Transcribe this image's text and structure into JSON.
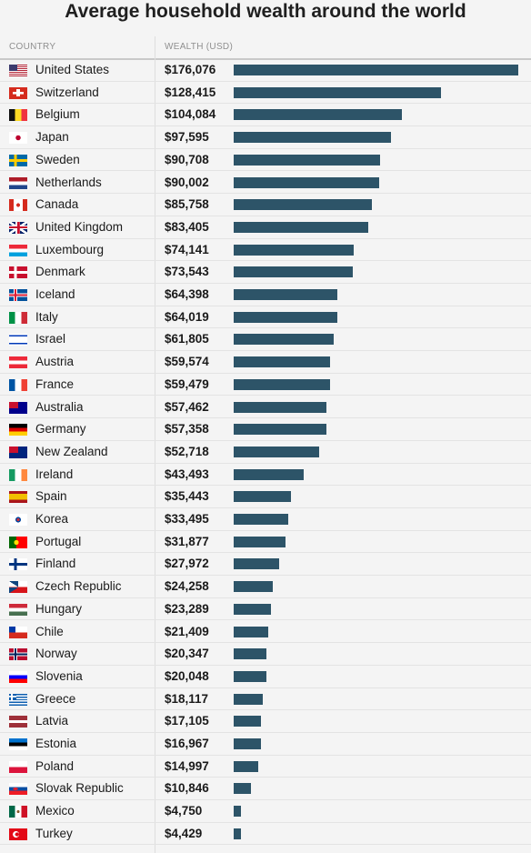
{
  "title": "Average household wealth around the world",
  "headers": {
    "country": "COUNTRY",
    "wealth": "WEALTH (USD)"
  },
  "colors": {
    "bar": "#2d5468",
    "background": "#f4f4f4"
  },
  "chart_data": {
    "type": "bar",
    "orientation": "horizontal",
    "title": "Average household wealth around the world",
    "categories": [
      "United States",
      "Switzerland",
      "Belgium",
      "Japan",
      "Sweden",
      "Netherlands",
      "Canada",
      "United Kingdom",
      "Luxembourg",
      "Denmark",
      "Iceland",
      "Italy",
      "Israel",
      "Austria",
      "France",
      "Australia",
      "Germany",
      "New Zealand",
      "Ireland",
      "Spain",
      "Korea",
      "Portugal",
      "Finland",
      "Czech Republic",
      "Hungary",
      "Chile",
      "Norway",
      "Slovenia",
      "Greece",
      "Latvia",
      "Estonia",
      "Poland",
      "Slovak Republic",
      "Mexico",
      "Turkey"
    ],
    "values": [
      176076,
      128415,
      104084,
      97595,
      90708,
      90002,
      85758,
      83405,
      74141,
      73543,
      64398,
      64019,
      61805,
      59574,
      59479,
      57462,
      57358,
      52718,
      43493,
      35443,
      33495,
      31877,
      27972,
      24258,
      23289,
      21409,
      20347,
      20048,
      18117,
      17105,
      16967,
      14997,
      10846,
      4750,
      4429
    ],
    "labels": [
      "$176,076",
      "$128,415",
      "$104,084",
      "$97,595",
      "$90,708",
      "$90,002",
      "$85,758",
      "$83,405",
      "$74,141",
      "$73,543",
      "$64,398",
      "$64,019",
      "$61,805",
      "$59,574",
      "$59,479",
      "$57,462",
      "$57,358",
      "$52,718",
      "$43,493",
      "$35,443",
      "$33,495",
      "$31,877",
      "$27,972",
      "$24,258",
      "$23,289",
      "$21,409",
      "$20,347",
      "$20,048",
      "$18,117",
      "$17,105",
      "$16,967",
      "$14,997",
      "$10,846",
      "$4,750",
      "$4,429"
    ],
    "flags": [
      "us-flag-icon",
      "switzerland-flag-icon",
      "belgium-flag-icon",
      "japan-flag-icon",
      "sweden-flag-icon",
      "netherlands-flag-icon",
      "canada-flag-icon",
      "uk-flag-icon",
      "luxembourg-flag-icon",
      "denmark-flag-icon",
      "iceland-flag-icon",
      "italy-flag-icon",
      "israel-flag-icon",
      "austria-flag-icon",
      "france-flag-icon",
      "australia-flag-icon",
      "germany-flag-icon",
      "new-zealand-flag-icon",
      "ireland-flag-icon",
      "spain-flag-icon",
      "korea-flag-icon",
      "portugal-flag-icon",
      "finland-flag-icon",
      "czech-flag-icon",
      "hungary-flag-icon",
      "chile-flag-icon",
      "norway-flag-icon",
      "slovenia-flag-icon",
      "greece-flag-icon",
      "latvia-flag-icon",
      "estonia-flag-icon",
      "poland-flag-icon",
      "slovakia-flag-icon",
      "mexico-flag-icon",
      "turkey-flag-icon"
    ],
    "xlim": [
      0,
      176076
    ],
    "grid": false,
    "legend": "none"
  }
}
